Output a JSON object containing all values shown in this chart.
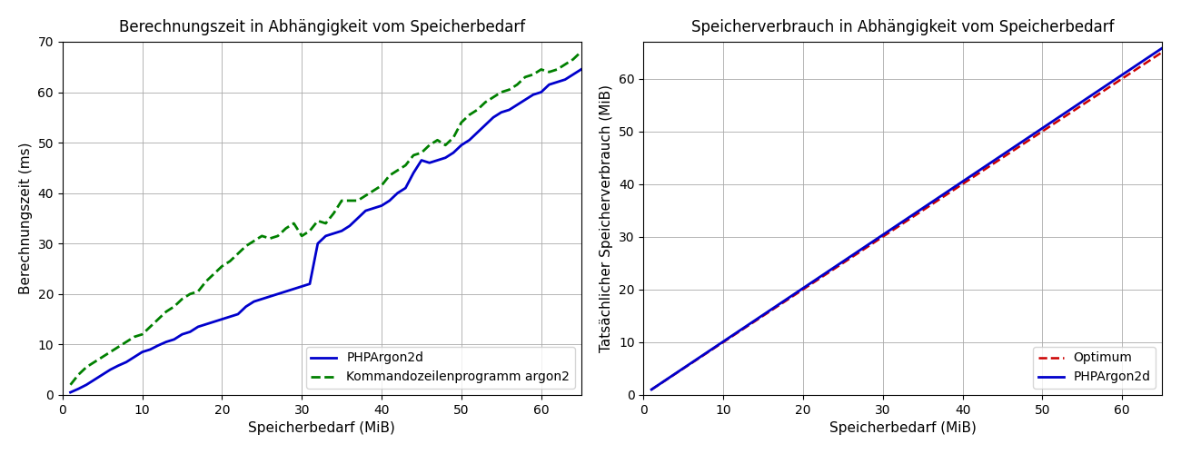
{
  "title1": "Berechnungszeit in Abhängigkeit vom Speicherbedarf",
  "title2": "Speicherverbrauch in Abhängigkeit vom Speicherbedarf",
  "xlabel": "Speicherbedarf (MiB)",
  "ylabel1": "Berechnungszeit (ms)",
  "ylabel2": "Tatsächlicher Speicherverbrauch (MiB)",
  "legend1_php": "PHPArgon2d",
  "legend1_cmd": "Kommandozeilenprogramm argon2",
  "legend2_php": "PHPArgon2d",
  "legend2_opt": "Optimum",
  "php_x": [
    1,
    2,
    3,
    4,
    5,
    6,
    7,
    8,
    9,
    10,
    11,
    12,
    13,
    14,
    15,
    16,
    17,
    18,
    19,
    20,
    21,
    22,
    23,
    24,
    25,
    26,
    27,
    28,
    29,
    30,
    31,
    32,
    33,
    34,
    35,
    36,
    37,
    38,
    39,
    40,
    41,
    42,
    43,
    44,
    45,
    46,
    47,
    48,
    49,
    50,
    51,
    52,
    53,
    54,
    55,
    56,
    57,
    58,
    59,
    60,
    61,
    62,
    63,
    64,
    65
  ],
  "php_y": [
    0.5,
    1.2,
    2.0,
    3.0,
    4.0,
    5.0,
    5.8,
    6.5,
    7.5,
    8.5,
    9.0,
    9.8,
    10.5,
    11.0,
    12.0,
    12.5,
    13.5,
    14.0,
    14.5,
    15.0,
    15.5,
    16.0,
    17.5,
    18.5,
    19.0,
    19.5,
    20.0,
    20.5,
    21.0,
    21.5,
    22.0,
    30.0,
    31.5,
    32.0,
    32.5,
    33.5,
    35.0,
    36.5,
    37.0,
    37.5,
    38.5,
    40.0,
    41.0,
    44.0,
    46.5,
    46.0,
    46.5,
    47.0,
    48.0,
    49.5,
    50.5,
    52.0,
    53.5,
    55.0,
    56.0,
    56.5,
    57.5,
    58.5,
    59.5,
    60.0,
    61.5,
    62.0,
    62.5,
    63.5,
    64.5
  ],
  "cmd_x": [
    1,
    2,
    3,
    4,
    5,
    6,
    7,
    8,
    9,
    10,
    11,
    12,
    13,
    14,
    15,
    16,
    17,
    18,
    19,
    20,
    21,
    22,
    23,
    24,
    25,
    26,
    27,
    28,
    29,
    30,
    31,
    32,
    33,
    34,
    35,
    36,
    37,
    38,
    39,
    40,
    41,
    42,
    43,
    44,
    45,
    46,
    47,
    48,
    49,
    50,
    51,
    52,
    53,
    54,
    55,
    56,
    57,
    58,
    59,
    60,
    61,
    62,
    63,
    64,
    65
  ],
  "cmd_y": [
    2.0,
    4.0,
    5.5,
    6.5,
    7.5,
    8.5,
    9.5,
    10.5,
    11.5,
    12.0,
    13.5,
    15.0,
    16.5,
    17.5,
    19.0,
    20.0,
    20.5,
    22.5,
    24.0,
    25.5,
    26.5,
    28.0,
    29.5,
    30.5,
    31.5,
    31.0,
    31.5,
    33.0,
    34.0,
    31.5,
    32.5,
    34.5,
    34.0,
    36.0,
    38.5,
    38.5,
    38.5,
    39.5,
    40.5,
    41.5,
    43.5,
    44.5,
    45.5,
    47.5,
    48.0,
    49.5,
    50.5,
    49.5,
    51.0,
    54.0,
    55.5,
    56.5,
    58.0,
    59.0,
    60.0,
    60.5,
    61.5,
    63.0,
    63.5,
    64.5,
    64.0,
    64.5,
    65.5,
    66.5,
    68.0
  ],
  "color_php": "#0000cc",
  "color_cmd": "#008000",
  "color_opt": "#cc0000",
  "xlim1": [
    0,
    65
  ],
  "ylim1": [
    0,
    70
  ],
  "xlim2": [
    0,
    65
  ],
  "ylim2": [
    0,
    67
  ],
  "xticks1": [
    0,
    10,
    20,
    30,
    40,
    50,
    60
  ],
  "yticks1": [
    0,
    10,
    20,
    30,
    40,
    50,
    60,
    70
  ],
  "xticks2": [
    0,
    10,
    20,
    30,
    40,
    50,
    60
  ],
  "yticks2": [
    0,
    10,
    20,
    30,
    40,
    50,
    60
  ],
  "mem_scale": 1.012,
  "mem_x_start": 1,
  "mem_x_end": 65
}
